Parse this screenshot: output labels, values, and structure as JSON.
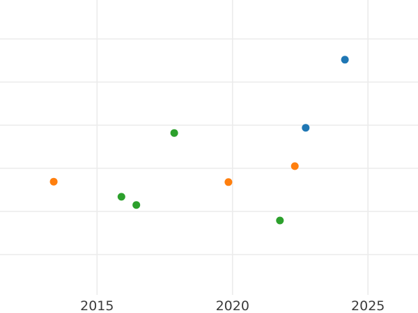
{
  "chart": {
    "background_color": "#ffffff",
    "grid_color": "#ebebeb",
    "tick_label_color": "#3b3b3b"
  },
  "chart_data": {
    "type": "scatter",
    "title": "",
    "xlabel": "",
    "ylabel": "",
    "x_tick_labels": [
      "2015",
      "2020",
      "2025"
    ],
    "x_ticks": [
      2015,
      2020,
      2025
    ],
    "xlim_visible": [
      2011.4,
      2026.85
    ],
    "y_axis": {
      "labels_visible": false,
      "units": "unlabeled-grid-units",
      "visible_gridline_values": [
        0,
        1,
        2,
        3,
        4,
        5
      ]
    },
    "grid": "on",
    "legend_position": "none",
    "marker_diameter_px": 11,
    "series": [
      {
        "name": "blue",
        "color": "#1f77b4",
        "points": [
          {
            "x": 2022.7,
            "y": 2.94
          },
          {
            "x": 2024.15,
            "y": 4.52
          }
        ]
      },
      {
        "name": "orange",
        "color": "#ff7f0e",
        "points": [
          {
            "x": 2013.4,
            "y": 1.69
          },
          {
            "x": 2019.85,
            "y": 1.68
          },
          {
            "x": 2022.3,
            "y": 2.05
          }
        ]
      },
      {
        "name": "green",
        "color": "#2ca02c",
        "points": [
          {
            "x": 2015.9,
            "y": 1.34
          },
          {
            "x": 2016.45,
            "y": 1.15
          },
          {
            "x": 2017.85,
            "y": 2.82
          },
          {
            "x": 2021.75,
            "y": 0.79
          }
        ]
      }
    ]
  }
}
